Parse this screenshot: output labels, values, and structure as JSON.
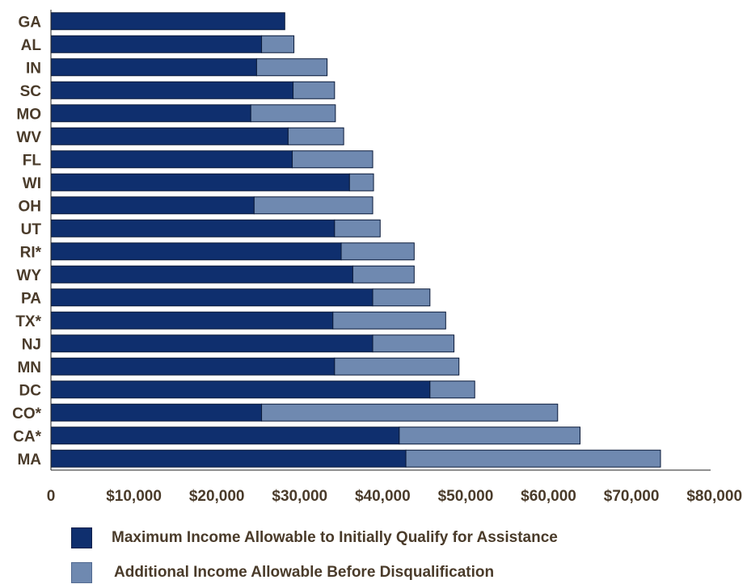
{
  "chart_data": {
    "type": "bar",
    "orientation": "horizontal",
    "stacked": true,
    "categories": [
      "GA",
      "AL",
      "IN",
      "SC",
      "MO",
      "WV",
      "FL",
      "WI",
      "OH",
      "UT",
      "RI*",
      "WY",
      "PA",
      "TX*",
      "NJ",
      "MN",
      "DC",
      "CO*",
      "CA*",
      "MA"
    ],
    "series": [
      {
        "name": "Maximum Income Allowable to Initially Qualify for Assistance",
        "color": "#0f2f6e",
        "values": [
          28200,
          25400,
          24800,
          29200,
          24100,
          28600,
          29100,
          36000,
          24500,
          34200,
          35000,
          36400,
          38800,
          34000,
          38800,
          34200,
          45700,
          25400,
          42000,
          42800
        ]
      },
      {
        "name": "Additional Income Allowable Before Disqualification",
        "color": "#6f89b0",
        "values": [
          0,
          3900,
          8500,
          5000,
          10200,
          6700,
          9700,
          2900,
          14300,
          5500,
          8800,
          7400,
          6900,
          13600,
          9800,
          15000,
          5400,
          35700,
          21800,
          30700
        ]
      }
    ],
    "xlim": [
      0,
      80000
    ],
    "xticks": [
      "0",
      "$10,000",
      "$20,000",
      "$30,000",
      "$40,000",
      "$50,000",
      "$60,000",
      "$70,000",
      "$80,000"
    ],
    "grid": false,
    "legend_position": "bottom"
  }
}
